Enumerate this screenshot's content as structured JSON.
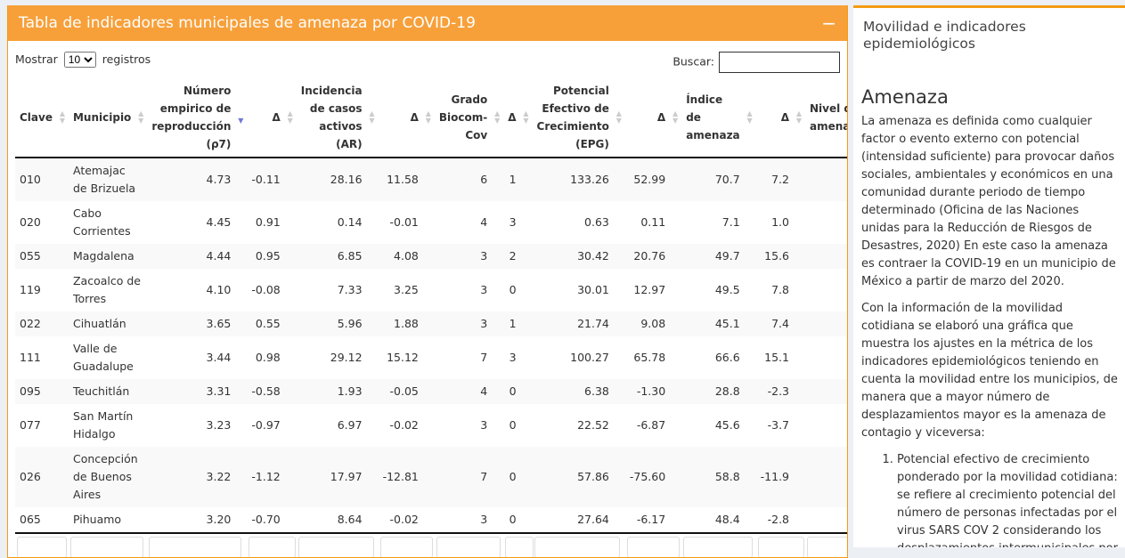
{
  "box": {
    "title": "Tabla de indicadores municipales de amenaza por COVID-19",
    "collapse": "−"
  },
  "controls": {
    "show_label": "Mostrar",
    "show_value": "10",
    "records_label": "registros",
    "search_label": "Buscar:",
    "search_value": ""
  },
  "table": {
    "headers": [
      "Clave",
      "Municipio",
      "Número empirico de reproducción (ρ7)",
      "Δ",
      "Incidencia de casos activos (AR)",
      "Δ",
      "Grado Biocom-Cov",
      "Δ",
      "Potencial Efectivo de Crecimiento (EPG)",
      "Δ",
      "Índice de amenaza",
      "Δ",
      "Nivel de amenaza"
    ],
    "sorted_column": "Número empirico de reproducción (ρ7)",
    "sort_direction": "descending",
    "rows": [
      [
        "010",
        "Atemajac de Brizuela",
        "4.73",
        "-0.11",
        "28.16",
        "11.58",
        "6",
        "1",
        "133.26",
        "52.99",
        "70.7",
        "7.2"
      ],
      [
        "020",
        "Cabo Corrientes",
        "4.45",
        "0.91",
        "0.14",
        "-0.01",
        "4",
        "3",
        "0.63",
        "0.11",
        "7.1",
        "1.0"
      ],
      [
        "055",
        "Magdalena",
        "4.44",
        "0.95",
        "6.85",
        "4.08",
        "3",
        "2",
        "30.42",
        "20.76",
        "49.7",
        "15.6"
      ],
      [
        "119",
        "Zacoalco de Torres",
        "4.10",
        "-0.08",
        "7.33",
        "3.25",
        "3",
        "0",
        "30.01",
        "12.97",
        "49.5",
        "7.8"
      ],
      [
        "022",
        "Cihuatlán",
        "3.65",
        "0.55",
        "5.96",
        "1.88",
        "3",
        "1",
        "21.74",
        "9.08",
        "45.1",
        "7.4"
      ],
      [
        "111",
        "Valle de Guadalupe",
        "3.44",
        "0.98",
        "29.12",
        "15.12",
        "7",
        "3",
        "100.27",
        "65.78",
        "66.6",
        "15.1"
      ],
      [
        "095",
        "Teuchitlán",
        "3.31",
        "-0.58",
        "1.93",
        "-0.05",
        "4",
        "0",
        "6.38",
        "-1.30",
        "28.8",
        "-2.3"
      ],
      [
        "077",
        "San Martín Hidalgo",
        "3.23",
        "-0.97",
        "6.97",
        "-0.02",
        "3",
        "0",
        "22.52",
        "-6.87",
        "45.6",
        "-3.7"
      ],
      [
        "026",
        "Concepción de Buenos Aires",
        "3.22",
        "-1.12",
        "17.97",
        "-12.81",
        "7",
        "0",
        "57.86",
        "-75.60",
        "58.8",
        "-11.9"
      ],
      [
        "065",
        "Pihuamo",
        "3.20",
        "-0.70",
        "8.64",
        "-0.02",
        "3",
        "0",
        "27.64",
        "-6.17",
        "48.4",
        "-2.8"
      ]
    ]
  },
  "side": {
    "title": "Movilidad e indicadores epidemiológicos",
    "heading": "Amenaza",
    "p1": "La amenaza es definida como cualquier factor o evento externo con potencial (intensidad suficiente) para provocar daños sociales, ambientales y económicos en una comunidad durante periodo de tiempo determinado (Oficina de las Naciones unidas para la Reducción de Riesgos de Desastres, 2020) En este caso la amenaza es contraer la COVID-19 en un municipio de México a partir de marzo del 2020.",
    "p2": "Con la información de la movilidad cotidiana se elaboró una gráfica que muestra los ajustes en la métrica de los indicadores epidemiológicos teniendo en cuenta la movilidad entre los municipios, de manera que a mayor número de desplazamientos mayor es la amenaza de contagio y viceversa:",
    "list": [
      "Potencial efectivo de crecimiento ponderado por la movilidad cotidiana: se refiere al crecimiento potencial del número de personas infectadas por el virus SARS COV 2 considerando los desplazamientos intermunicipales por motivo de trabajo y educación."
    ]
  },
  "colors": {
    "accent": "#f7a03a",
    "sort_active": "#6c7ad6"
  }
}
